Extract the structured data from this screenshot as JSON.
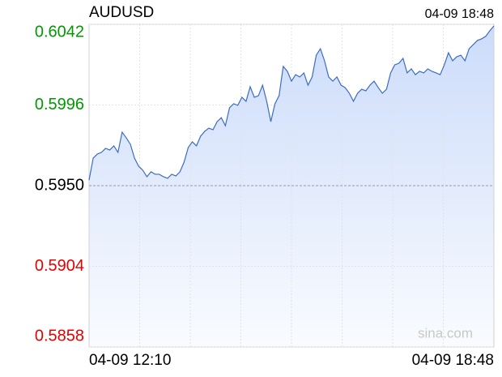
{
  "chart_data": {
    "type": "line",
    "title": "AUDUSD",
    "timestamp": "04-09 18:48",
    "watermark": "sina.com",
    "categories": [
      "04-09 12:10",
      null,
      null,
      null,
      null,
      null,
      null,
      null,
      null,
      null,
      null,
      null,
      null,
      null,
      null,
      null,
      null,
      null,
      null,
      null,
      null,
      null,
      null,
      null,
      null,
      null,
      null,
      null,
      null,
      null,
      null,
      null,
      null,
      null,
      null,
      null,
      null,
      null,
      null,
      null,
      null,
      null,
      null,
      null,
      null,
      null,
      null,
      null,
      null,
      null,
      null,
      null,
      null,
      null,
      null,
      null,
      null,
      null,
      null,
      null,
      null,
      null,
      null,
      null,
      null,
      null,
      null,
      null,
      null,
      null,
      null,
      null,
      null,
      null,
      null,
      null,
      null,
      null,
      null,
      null,
      null,
      null,
      null,
      null,
      null,
      null,
      null,
      null,
      null,
      null,
      null,
      null,
      null,
      null,
      null,
      null,
      null,
      null,
      "04-09 18:48"
    ],
    "values": [
      0.59532,
      0.59657,
      0.5968,
      0.5969,
      0.59713,
      0.59703,
      0.59727,
      0.5969,
      0.59805,
      0.59773,
      0.59736,
      0.59657,
      0.59611,
      0.59588,
      0.59551,
      0.59579,
      0.59565,
      0.59565,
      0.59551,
      0.59542,
      0.59565,
      0.59555,
      0.59579,
      0.59634,
      0.59717,
      0.5975,
      0.59727,
      0.59782,
      0.5981,
      0.59828,
      0.59819,
      0.59865,
      0.59888,
      0.59842,
      0.59944,
      0.59967,
      0.59958,
      0.60004,
      0.59981,
      0.60064,
      0.60004,
      0.60013,
      0.60073,
      0.59981,
      0.59865,
      0.59967,
      0.60013,
      0.6018,
      0.60152,
      0.60096,
      0.60133,
      0.6012,
      0.60143,
      0.60073,
      0.6012,
      0.60244,
      0.60281,
      0.60212,
      0.6012,
      0.60096,
      0.6012,
      0.60073,
      0.60059,
      0.60027,
      0.59981,
      0.60027,
      0.6005,
      0.60041,
      0.60073,
      0.60096,
      0.60059,
      0.60027,
      0.6005,
      0.60143,
      0.60189,
      0.60198,
      0.60226,
      0.60143,
      0.60166,
      0.60133,
      0.60152,
      0.60143,
      0.60166,
      0.60152,
      0.60143,
      0.60133,
      0.60189,
      0.60258,
      0.60212,
      0.60235,
      0.60244,
      0.60212,
      0.60281,
      0.60304,
      0.60328,
      0.60337,
      0.60351,
      0.60383,
      0.60411
    ],
    "color": "#3c6cc4",
    "fill_color": "#c9dafa",
    "ylim": [
      0.5858,
      0.6042
    ],
    "yticks": [
      0.6042,
      0.5996,
      {
        "value": 0.595,
        "label": "0.5950"
      },
      0.5904,
      0.5858
    ],
    "reference_line": 0.595,
    "up_color": "#009900",
    "down_color": "#e60000",
    "grid": true
  }
}
